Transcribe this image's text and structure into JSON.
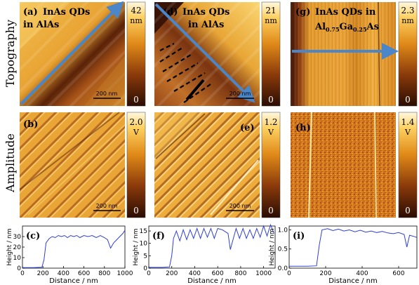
{
  "rows": {
    "topography": "Topography",
    "amplitude": "Amplitude"
  },
  "panels": {
    "a": {
      "letter": "(a)",
      "title_line1": "InAs QDs",
      "title_line2": "in AlAs"
    },
    "d": {
      "letter": "(d)",
      "title_line1": "InAs QDs",
      "title_line2": "in AlAs"
    },
    "g": {
      "letter": "(g)",
      "title_line1": "InAs QDs in",
      "title_al": "Al",
      "sub1": "0.75",
      "title_ga": "Ga",
      "sub2": "0.25",
      "title_as": "As"
    },
    "b": {
      "letter": "(b)"
    },
    "e": {
      "letter": "(e)"
    },
    "h": {
      "letter": "(h)"
    },
    "c": {
      "letter": "(c)"
    },
    "f": {
      "letter": "(f)"
    },
    "i": {
      "letter": "(i)"
    }
  },
  "scalebars": {
    "a": "200 nm",
    "d": "200 nm",
    "b": "200 nm",
    "e": "200 nm"
  },
  "colorbars": {
    "a": {
      "max": "42",
      "unit": "nm",
      "min": "0"
    },
    "d": {
      "max": "21",
      "unit": "nm",
      "min": "0"
    },
    "g": {
      "max": "2.3",
      "unit": "nm",
      "min": "0"
    },
    "b": {
      "max": "2.0",
      "unit": "V",
      "min": "0"
    },
    "e": {
      "max": "1.2",
      "unit": "V",
      "min": "0"
    },
    "h": {
      "max": "1.4",
      "unit": "V",
      "min": "0"
    }
  },
  "colors": {
    "arrow": "#4a86c8",
    "profile": "#2f3fd8",
    "dark": "#3a1405",
    "mid": "#c07020",
    "light": "#fff2c8"
  },
  "chart_data": [
    {
      "type": "line",
      "panel": "c",
      "xlabel": "Distance / nm",
      "ylabel": "Height / nm",
      "xlim": [
        0,
        1000
      ],
      "ylim": [
        0,
        40
      ],
      "xticks": [
        0,
        200,
        400,
        600,
        800,
        1000
      ],
      "yticks": [
        0,
        10,
        20,
        30
      ],
      "series": [
        {
          "values": [
            [
              0,
              0.5
            ],
            [
              100,
              0.5
            ],
            [
              190,
              0.8
            ],
            [
              210,
              8
            ],
            [
              230,
              24
            ],
            [
              260,
              28
            ],
            [
              290,
              30
            ],
            [
              320,
              29
            ],
            [
              350,
              31
            ],
            [
              380,
              30
            ],
            [
              410,
              31
            ],
            [
              440,
              29
            ],
            [
              470,
              31
            ],
            [
              500,
              30
            ],
            [
              530,
              31
            ],
            [
              560,
              29
            ],
            [
              600,
              31
            ],
            [
              640,
              30
            ],
            [
              680,
              31
            ],
            [
              720,
              29
            ],
            [
              760,
              31
            ],
            [
              800,
              29
            ],
            [
              830,
              27
            ],
            [
              860,
              19
            ],
            [
              890,
              24
            ],
            [
              920,
              27
            ],
            [
              950,
              30
            ],
            [
              980,
              33
            ],
            [
              1000,
              36
            ]
          ]
        }
      ]
    },
    {
      "type": "line",
      "panel": "f",
      "xlim": [
        0,
        1100
      ],
      "ylim": [
        0,
        17
      ],
      "xticks": [
        0,
        200,
        400,
        600,
        800,
        1000
      ],
      "yticks": [
        0,
        5,
        10,
        15
      ],
      "series": [
        {
          "values": [
            [
              0,
              0.3
            ],
            [
              120,
              0.3
            ],
            [
              180,
              0.5
            ],
            [
              200,
              5
            ],
            [
              215,
              12
            ],
            [
              240,
              15
            ],
            [
              270,
              11
            ],
            [
              300,
              15.5
            ],
            [
              330,
              11.5
            ],
            [
              360,
              15.5
            ],
            [
              390,
              12
            ],
            [
              420,
              16
            ],
            [
              450,
              12
            ],
            [
              480,
              16
            ],
            [
              510,
              12.5
            ],
            [
              540,
              16
            ],
            [
              570,
              12
            ],
            [
              600,
              16
            ],
            [
              640,
              15.5
            ],
            [
              690,
              14
            ],
            [
              710,
              7.5
            ],
            [
              730,
              11
            ],
            [
              760,
              16
            ],
            [
              790,
              12
            ],
            [
              820,
              16
            ],
            [
              850,
              12
            ],
            [
              880,
              15.5
            ],
            [
              910,
              12
            ],
            [
              940,
              16
            ],
            [
              970,
              12.5
            ],
            [
              1000,
              17
            ],
            [
              1030,
              13
            ],
            [
              1060,
              17.5
            ],
            [
              1090,
              14
            ]
          ]
        }
      ]
    },
    {
      "type": "line",
      "panel": "i",
      "xlim": [
        0,
        700
      ],
      "ylim": [
        0,
        1.1
      ],
      "xticks": [
        0,
        200,
        400,
        600
      ],
      "yticks": [
        0.0,
        0.5,
        1.0
      ],
      "series": [
        {
          "values": [
            [
              0,
              0.05
            ],
            [
              100,
              0.05
            ],
            [
              150,
              0.06
            ],
            [
              165,
              0.6
            ],
            [
              180,
              1.0
            ],
            [
              210,
              1.03
            ],
            [
              240,
              0.98
            ],
            [
              270,
              1.02
            ],
            [
              300,
              0.97
            ],
            [
              330,
              1.0
            ],
            [
              360,
              0.95
            ],
            [
              390,
              0.99
            ],
            [
              420,
              0.94
            ],
            [
              450,
              0.97
            ],
            [
              480,
              0.93
            ],
            [
              510,
              0.96
            ],
            [
              540,
              0.92
            ],
            [
              570,
              0.9
            ],
            [
              600,
              0.93
            ],
            [
              630,
              0.88
            ],
            [
              645,
              0.55
            ],
            [
              660,
              0.86
            ],
            [
              690,
              0.82
            ],
            [
              700,
              0.8
            ]
          ]
        }
      ]
    }
  ]
}
